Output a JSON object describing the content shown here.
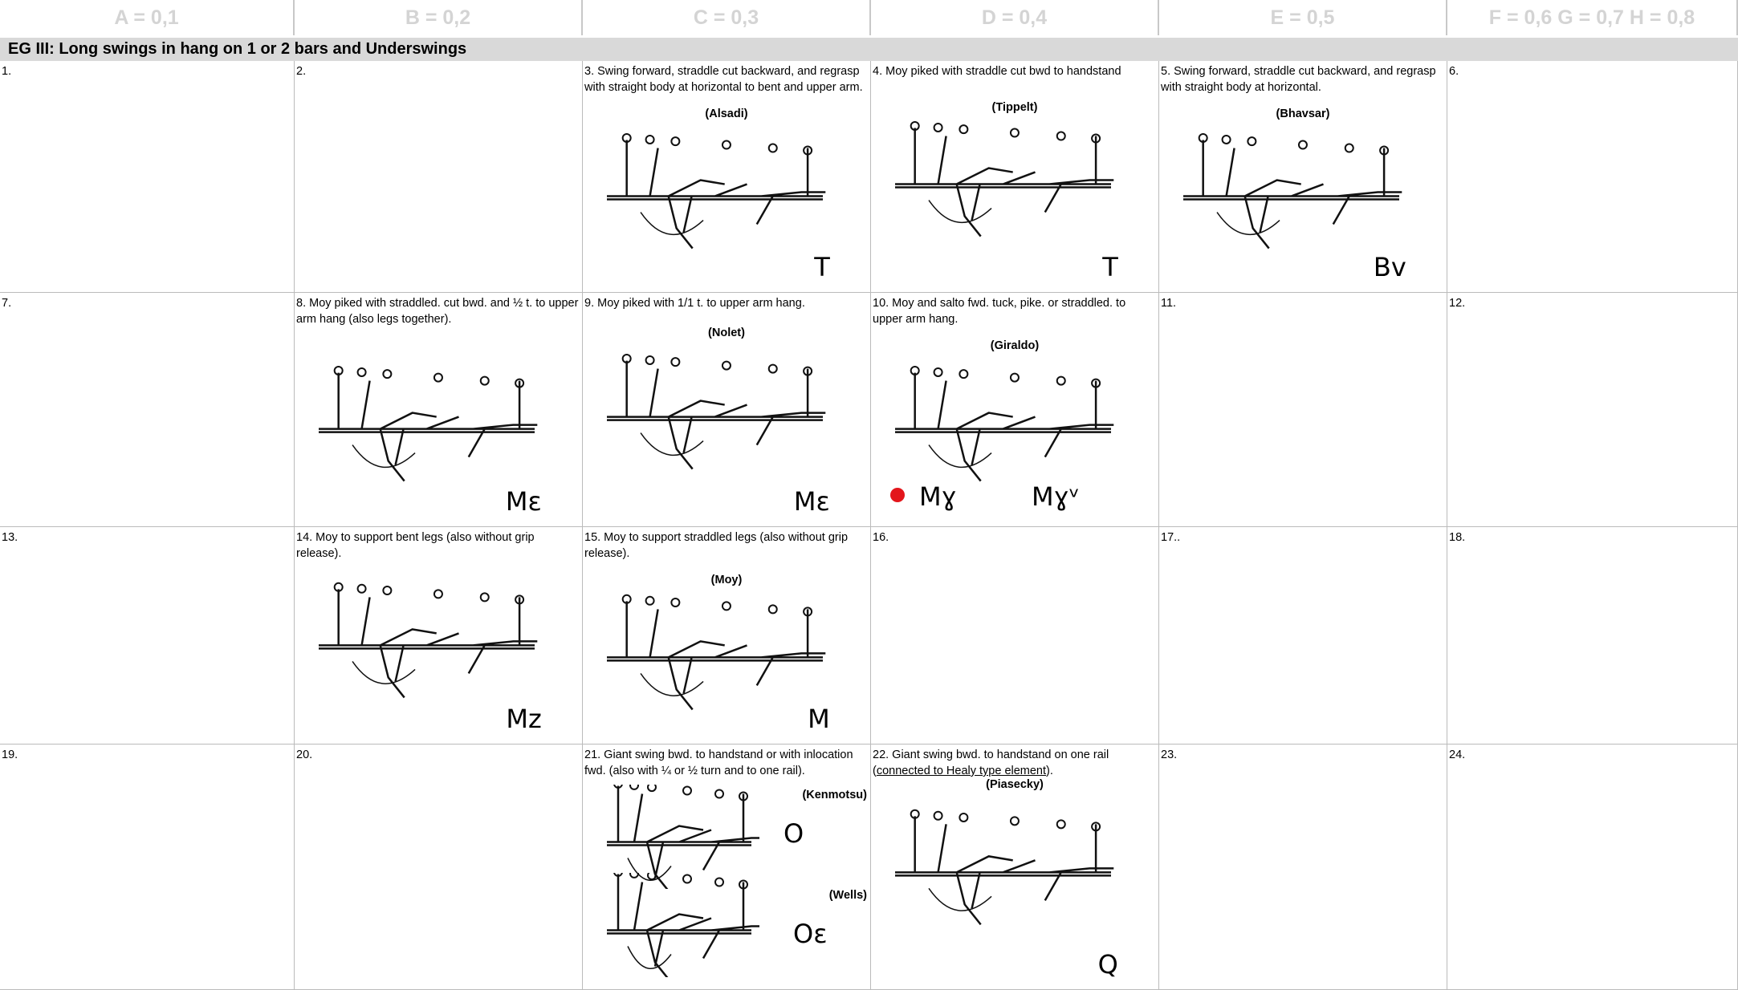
{
  "header": {
    "columns": [
      "A = 0,1",
      "B = 0,2",
      "C = 0,3",
      "D = 0,4",
      "E = 0,5",
      "F = 0,6 G = 0,7 H = 0,8"
    ]
  },
  "section": {
    "title": "EG III: Long swings in hang on 1 or 2 bars and Underswings"
  },
  "rows": [
    [
      {
        "text": "1."
      },
      {
        "text": "2."
      },
      {
        "text": "3. Swing forward, straddle cut backward, and regrasp with straight body at horizontal to bent and upper arm.",
        "names": [
          "(Alsadi)"
        ],
        "symbols": [
          "T"
        ]
      },
      {
        "text": "4.  Moy piked with straddle cut bwd to handstand",
        "names": [
          "(Tippelt)"
        ],
        "symbols": [
          "T"
        ]
      },
      {
        "text": "5. Swing forward, straddle cut backward, and regrasp with straight body at horizontal.",
        "names": [
          "(Bhavsar)"
        ],
        "symbols": [
          "Bv"
        ]
      },
      {
        "text": "6."
      }
    ],
    [
      {
        "text": "7."
      },
      {
        "text": "8. Moy piked with straddled. cut bwd. and ½ t. to upper arm hang (also legs together).",
        "symbols": [
          "Mɛ"
        ]
      },
      {
        "text": "9.  Moy piked with 1/1 t. to upper arm hang.",
        "names": [
          "(Nolet)"
        ],
        "symbols": [
          "Mɛ"
        ]
      },
      {
        "text": "10.  Moy and salto fwd. tuck, pike. or straddled. to upper arm  hang.",
        "names": [
          "(Giraldo)"
        ],
        "symbols": [
          "Mɣ",
          "Mɣᵛ"
        ]
      },
      {
        "text": "11."
      },
      {
        "text": "12."
      }
    ],
    [
      {
        "text": "13."
      },
      {
        "text": "14. Moy to support bent legs (also without grip release).",
        "symbols": [
          "Mz"
        ]
      },
      {
        "text": "15. Moy to support straddled legs (also without grip  release).",
        "names": [
          "(Moy)"
        ],
        "symbols": [
          "M"
        ]
      },
      {
        "text": "16."
      },
      {
        "text": "17.."
      },
      {
        "text": "18."
      }
    ],
    [
      {
        "text": "19."
      },
      {
        "text": "20."
      },
      {
        "text": "21. Giant swing bwd. to handstand or with inlocation fwd.  (also with ¼ or ½ turn and to one rail).",
        "names": [
          "(Kenmotsu)",
          "(Wells)"
        ],
        "symbols": [
          "O",
          "Oɛ"
        ]
      },
      {
        "text": "22. Giant swing bwd. to handstand on one rail (",
        "underlined": "connected to Healy type element",
        "text_after": ").",
        "names": [
          "(Piasecky)"
        ],
        "symbols": [
          "Q"
        ]
      },
      {
        "text": "23."
      },
      {
        "text": "24."
      }
    ]
  ]
}
